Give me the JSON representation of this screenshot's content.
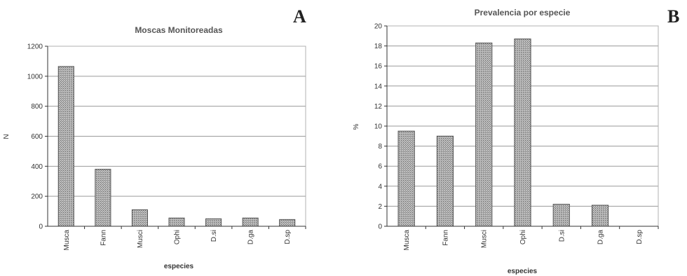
{
  "chart_data": [
    {
      "type": "bar",
      "panel_letter": "A",
      "title": "Moscas Monitoreadas",
      "xlabel": "especies",
      "ylabel": "N",
      "categories": [
        "Musca",
        "Fann",
        "Musci",
        "Ophi",
        "D.si",
        "D.ga",
        "D.sp"
      ],
      "values": [
        1065,
        380,
        110,
        55,
        50,
        55,
        45
      ],
      "ylim": [
        0,
        1200
      ],
      "yticks": [
        0,
        200,
        400,
        600,
        800,
        1000,
        1200
      ],
      "grid": true,
      "bar_color": "#9a9a9a"
    },
    {
      "type": "bar",
      "panel_letter": "B",
      "title": "Prevalencia por especie",
      "xlabel": "especies",
      "ylabel": "%",
      "categories": [
        "Musca",
        "Fann",
        "Musci",
        "Ophi",
        "D.si",
        "D.ga",
        "D.sp"
      ],
      "values": [
        9.5,
        9.0,
        18.3,
        18.7,
        2.2,
        2.1,
        0
      ],
      "ylim": [
        0,
        20
      ],
      "yticks": [
        0,
        2,
        4,
        6,
        8,
        10,
        12,
        14,
        16,
        18,
        20
      ],
      "grid": true,
      "bar_color": "#9a9a9a"
    }
  ]
}
